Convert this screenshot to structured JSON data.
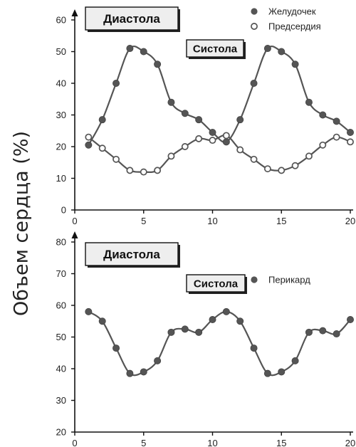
{
  "y_label": "Объем сердца (%)",
  "colors": {
    "line": "#555555",
    "marker_filled": "#555555",
    "marker_open_fill": "#ffffff",
    "text": "#222222",
    "box_fill": "#eeeeee"
  },
  "chart_data": [
    {
      "type": "line",
      "ylim": [
        0,
        60
      ],
      "xlim": [
        0,
        20
      ],
      "x_ticks": [
        "0",
        "5",
        "10",
        "15",
        "20"
      ],
      "y_ticks": [
        "0",
        "10",
        "20",
        "30",
        "40",
        "50",
        "60"
      ],
      "annotations": [
        {
          "text": "Диастола"
        },
        {
          "text": "Систола"
        }
      ],
      "legend": "top-right",
      "series": [
        {
          "name": "Желудочек",
          "marker": "filled",
          "x": [
            1,
            2,
            3,
            4,
            5,
            6,
            7,
            8,
            9,
            10,
            11,
            12,
            13,
            14,
            15,
            16,
            17,
            18,
            19,
            20
          ],
          "y": [
            20.5,
            28.5,
            40,
            51,
            50,
            46,
            34,
            30.5,
            28.5,
            24.5,
            21.5,
            28.5,
            40,
            51,
            50,
            46,
            34,
            30,
            28,
            24.5
          ]
        },
        {
          "name": "Предсердия",
          "marker": "open",
          "x": [
            1,
            2,
            3,
            4,
            5,
            6,
            7,
            8,
            9,
            10,
            11,
            12,
            13,
            14,
            15,
            16,
            17,
            18,
            19,
            20
          ],
          "y": [
            23,
            19.5,
            16,
            12.5,
            12,
            12.5,
            17,
            20,
            22.5,
            22,
            23.5,
            19,
            16,
            13,
            12.5,
            14,
            17,
            20.5,
            23,
            21.5
          ]
        }
      ]
    },
    {
      "type": "line",
      "ylim": [
        20,
        80
      ],
      "xlim": [
        0,
        20
      ],
      "x_ticks": [
        "0",
        "5",
        "10",
        "15",
        "20"
      ],
      "y_ticks": [
        "20",
        "30",
        "40",
        "50",
        "60",
        "70",
        "80"
      ],
      "annotations": [
        {
          "text": "Диастола"
        },
        {
          "text": "Систола"
        }
      ],
      "legend": "top-right",
      "series": [
        {
          "name": "Перикард",
          "marker": "filled",
          "x": [
            1,
            2,
            3,
            4,
            5,
            6,
            7,
            8,
            9,
            10,
            11,
            12,
            13,
            14,
            15,
            16,
            17,
            18,
            19,
            20
          ],
          "y": [
            58,
            55,
            46.5,
            38.5,
            39,
            42.5,
            51.5,
            52.5,
            51.5,
            55.5,
            58,
            55,
            46.5,
            38.5,
            39,
            42.5,
            51.5,
            52,
            51,
            55.5
          ]
        }
      ]
    }
  ]
}
